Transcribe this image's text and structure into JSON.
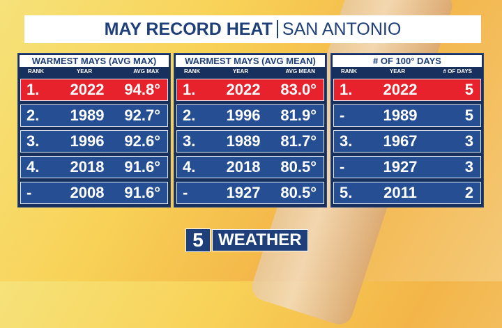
{
  "header": {
    "title": "MAY RECORD HEAT",
    "subtitle": "SAN ANTONIO"
  },
  "tables": [
    {
      "title": "WARMEST MAYS (AVG MAX)",
      "columns": [
        "RANK",
        "YEAR",
        "AVG MAX"
      ],
      "rows": [
        [
          "1.",
          "2022",
          "94.8°"
        ],
        [
          "2.",
          "1989",
          "92.7°"
        ],
        [
          "3.",
          "1996",
          "92.6°"
        ],
        [
          "4.",
          "2018",
          "91.6°"
        ],
        [
          "-",
          "2008",
          "91.6°"
        ]
      ]
    },
    {
      "title": "WARMEST MAYS (AVG MEAN)",
      "columns": [
        "RANK",
        "YEAR",
        "AVG MEAN"
      ],
      "rows": [
        [
          "1.",
          "2022",
          "83.0°"
        ],
        [
          "2.",
          "1996",
          "81.9°"
        ],
        [
          "3.",
          "1989",
          "81.7°"
        ],
        [
          "4.",
          "2018",
          "80.5°"
        ],
        [
          "-",
          "1927",
          "80.5°"
        ]
      ]
    },
    {
      "title": "# OF 100° DAYS",
      "columns": [
        "RANK",
        "YEAR",
        "# OF DAYS"
      ],
      "rows": [
        [
          "1.",
          "2022",
          "5"
        ],
        [
          "-",
          "1989",
          "5"
        ],
        [
          "3.",
          "1967",
          "3"
        ],
        [
          "-",
          "1927",
          "3"
        ],
        [
          "5.",
          "2011",
          "2"
        ]
      ]
    }
  ],
  "logo": {
    "number": "5",
    "text": "WEATHER"
  }
}
